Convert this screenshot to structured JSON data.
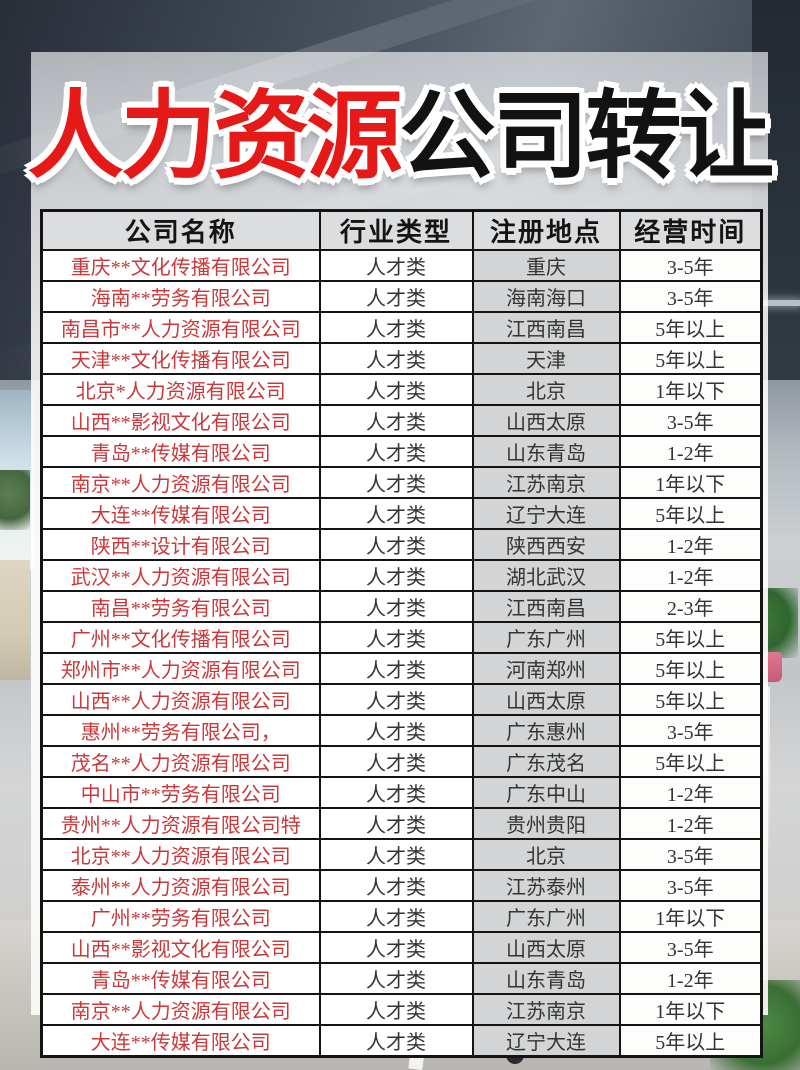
{
  "title": {
    "red_part": "人力资源",
    "black_part": "公司转让"
  },
  "table": {
    "headers": [
      "公司名称",
      "行业类型",
      "注册地点",
      "经营时间"
    ],
    "rows": [
      {
        "company": "重庆**文化传播有限公司",
        "industry": "人才类",
        "location": "重庆",
        "duration": "3-5年"
      },
      {
        "company": "海南**劳务有限公司",
        "industry": "人才类",
        "location": "海南海口",
        "duration": "3-5年"
      },
      {
        "company": "南昌市**人力资源有限公司",
        "industry": "人才类",
        "location": "江西南昌",
        "duration": "5年以上"
      },
      {
        "company": "天津**文化传播有限公司",
        "industry": "人才类",
        "location": "天津",
        "duration": "5年以上"
      },
      {
        "company": "北京*人力资源有限公司",
        "industry": "人才类",
        "location": "北京",
        "duration": "1年以下"
      },
      {
        "company": "山西**影视文化有限公司",
        "industry": "人才类",
        "location": "山西太原",
        "duration": "3-5年"
      },
      {
        "company": "青岛**传媒有限公司",
        "industry": "人才类",
        "location": "山东青岛",
        "duration": "1-2年"
      },
      {
        "company": "南京**人力资源有限公司",
        "industry": "人才类",
        "location": "江苏南京",
        "duration": "1年以下"
      },
      {
        "company": "大连**传媒有限公司",
        "industry": "人才类",
        "location": "辽宁大连",
        "duration": "5年以上"
      },
      {
        "company": "陕西**设计有限公司",
        "industry": "人才类",
        "location": "陕西西安",
        "duration": "1-2年"
      },
      {
        "company": "武汉**人力资源有限公司",
        "industry": "人才类",
        "location": "湖北武汉",
        "duration": "1-2年"
      },
      {
        "company": "南昌**劳务有限公司",
        "industry": "人才类",
        "location": "江西南昌",
        "duration": "2-3年"
      },
      {
        "company": "广州**文化传播有限公司",
        "industry": "人才类",
        "location": "广东广州",
        "duration": "5年以上"
      },
      {
        "company": "郑州市**人力资源有限公司",
        "industry": "人才类",
        "location": "河南郑州",
        "duration": "5年以上"
      },
      {
        "company": "山西**人力资源有限公司",
        "industry": "人才类",
        "location": "山西太原",
        "duration": "5年以上"
      },
      {
        "company": "惠州**劳务有限公司，",
        "industry": "人才类",
        "location": "广东惠州",
        "duration": "3-5年"
      },
      {
        "company": "茂名**人力资源有限公司",
        "industry": "人才类",
        "location": "广东茂名",
        "duration": "5年以上"
      },
      {
        "company": "中山市**劳务有限公司",
        "industry": "人才类",
        "location": "广东中山",
        "duration": "1-2年"
      },
      {
        "company": "贵州**人力资源有限公司特",
        "industry": "人才类",
        "location": "贵州贵阳",
        "duration": "1-2年"
      },
      {
        "company": "北京**人力资源有限公司",
        "industry": "人才类",
        "location": "北京",
        "duration": "3-5年"
      },
      {
        "company": "泰州**人力资源有限公司",
        "industry": "人才类",
        "location": "江苏泰州",
        "duration": "3-5年"
      },
      {
        "company": "广州**劳务有限公司",
        "industry": "人才类",
        "location": "广东广州",
        "duration": "1年以下"
      },
      {
        "company": "山西**影视文化有限公司",
        "industry": "人才类",
        "location": "山西太原",
        "duration": "3-5年"
      },
      {
        "company": "青岛**传媒有限公司",
        "industry": "人才类",
        "location": "山东青岛",
        "duration": "1-2年"
      },
      {
        "company": "南京**人力资源有限公司",
        "industry": "人才类",
        "location": "江苏南京",
        "duration": "1年以下"
      },
      {
        "company": "大连**传媒有限公司",
        "industry": "人才类",
        "location": "辽宁大连",
        "duration": "5年以上"
      }
    ]
  },
  "colors": {
    "title_red": "#e51a18",
    "title_black": "#121212",
    "title_outline": "#ffffff",
    "company_name_red": "#c9383a",
    "cell_text_dark": "#343434",
    "table_border": "#141414",
    "header_row_bg": "#dbdddf",
    "location_column_bg": "#d2d4d6",
    "panel_overlay": "#f3f4f5"
  }
}
